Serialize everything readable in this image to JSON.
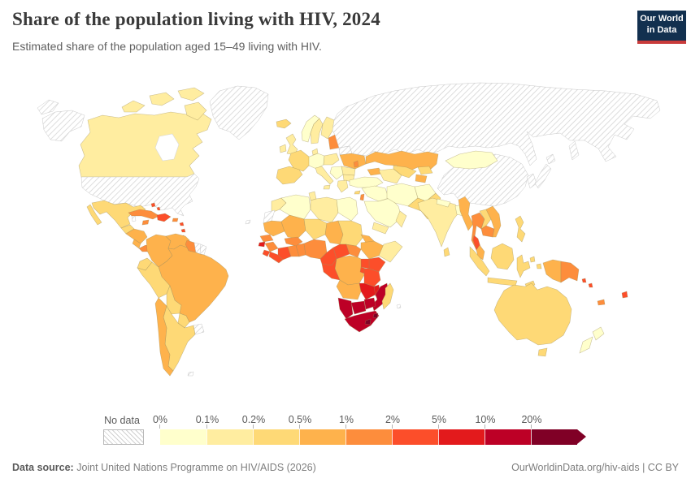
{
  "header": {
    "title": "Share of the population living with HIV, 2024",
    "subtitle": "Estimated share of the population aged 15–49 living with HIV.",
    "logo": {
      "line1": "Our World",
      "line2": "in Data",
      "bg_color": "#12304f",
      "accent_color": "#c93b3b"
    }
  },
  "legend": {
    "no_data_label": "No data",
    "bins": [
      {
        "label": "0%",
        "color": "#ffffcc"
      },
      {
        "label": "0.1%",
        "color": "#ffeda0"
      },
      {
        "label": "0.2%",
        "color": "#fed976"
      },
      {
        "label": "0.5%",
        "color": "#feb24c"
      },
      {
        "label": "1%",
        "color": "#fd8d3c"
      },
      {
        "label": "2%",
        "color": "#fc4e2a"
      },
      {
        "label": "5%",
        "color": "#e31a1c"
      },
      {
        "label": "10%",
        "color": "#bd0026"
      },
      {
        "label": "20%",
        "color": "#800026"
      }
    ]
  },
  "footer": {
    "source_label": "Data source:",
    "source_text": " Joint United Nations Programme on HIV/AIDS (2026)",
    "link_text": "OurWorldinData.org/hiv-aids | CC BY"
  },
  "map": {
    "palette": {
      "0-0.1": "#ffffcc",
      "0.1-0.2": "#ffeda0",
      "0.2-0.5": "#fed976",
      "0.5-1": "#feb24c",
      "1-2": "#fd8d3c",
      "2-5": "#fc4e2a",
      "5-10": "#e31a1c",
      "10-20": "#bd0026",
      "20+": "#800026"
    },
    "hatch_line_color": "#d2d2d2"
  },
  "chart_data": {
    "type": "choropleth-world-map",
    "title": "Share of the population living with HIV, 2024",
    "subtitle": "Estimated share of the population aged 15–49 living with HIV.",
    "unit": "% of population aged 15–49",
    "legend_position": "bottom",
    "bins": [
      {
        "label": "0%",
        "range": "0–0.1%",
        "color": "#ffffcc"
      },
      {
        "label": "0.1%",
        "range": "0.1–0.2%",
        "color": "#ffeda0"
      },
      {
        "label": "0.2%",
        "range": "0.2–0.5%",
        "color": "#fed976"
      },
      {
        "label": "0.5%",
        "range": "0.5–1%",
        "color": "#feb24c"
      },
      {
        "label": "1%",
        "range": "1–2%",
        "color": "#fd8d3c"
      },
      {
        "label": "2%",
        "range": "2–5%",
        "color": "#fc4e2a"
      },
      {
        "label": "5%",
        "range": "5–10%",
        "color": "#e31a1c"
      },
      {
        "label": "10%",
        "range": "10–20%",
        "color": "#bd0026"
      },
      {
        "label": "20%",
        "range": "≥20%",
        "color": "#800026"
      }
    ],
    "no_data": {
      "label": "No data",
      "style": "diagonal-hatch"
    },
    "countries": {
      "chukotka-west": "no-data",
      "alaska": "no-data",
      "usa": "no-data",
      "greenland": "no-data",
      "belize": "no-data",
      "bermuda": "no-data",
      "suriname": "no-data",
      "french-guiana": "no-data",
      "uruguay": "no-data",
      "falkland-islands": "no-data",
      "russia": "no-data",
      "sakhalin": "no-data",
      "belarus": "no-data",
      "china": "no-data",
      "japan-main": "no-data",
      "japan-north": "no-data",
      "korea": "no-data",
      "western-sahara": "no-data",
      "reunion": "no-data",
      "norway": "0-0.1",
      "germany-central-europe": "0-0.1",
      "serbia-balkans": "0-0.1",
      "turkey": "0-0.1",
      "syria-iraq": "0-0.1",
      "saudi-arabia": "0-0.1",
      "iran": "0-0.1",
      "afghanistan": "0-0.1",
      "nepal": "0-0.1",
      "bangladesh": "0-0.1",
      "mongolia": "0-0.1",
      "algeria": "0-0.1",
      "egypt": "0-0.1",
      "nz-north": "0-0.1",
      "nz-south": "0-0.1",
      "canada": "0.1-0.2",
      "canada-arctic-1": "0.1-0.2",
      "canada-arctic-2": "0.1-0.2",
      "canada-arctic-3": "0.1-0.2",
      "canada-arctic-4": "0.1-0.2",
      "uk": "0.1-0.2",
      "ireland": "0.1-0.2",
      "sweden": "0.1-0.2",
      "finland": "0.1-0.2",
      "denmark": "0.1-0.2",
      "poland": "0.1-0.2",
      "romania": "0.1-0.2",
      "bulgaria": "0.1-0.2",
      "greece": "0.1-0.2",
      "italy": "0.1-0.2",
      "sicily": "0.1-0.2",
      "morocco": "0.1-0.2",
      "tunisia": "0.1-0.2",
      "libya": "0.1-0.2",
      "somalia": "0.1-0.2",
      "yemen": "0.1-0.2",
      "oman": "0.1-0.2",
      "india": "0.1-0.2",
      "turkmenistan": "0.1-0.2",
      "mexico": "0.2-0.5",
      "baja": "0.2-0.5",
      "guatemala": "0.2-0.5",
      "ecuador": "0.2-0.5",
      "peru": "0.2-0.5",
      "bolivia": "0.2-0.5",
      "paraguay": "0.2-0.5",
      "argentina": "0.2-0.5",
      "iceland": "0.2-0.5",
      "france": "0.2-0.5",
      "iberia": "0.2-0.5",
      "cyprus": "0.2-0.5",
      "niger": "0.2-0.5",
      "sudan": "0.2-0.5",
      "madagascar": "0.2-0.5",
      "pakistan": "0.2-0.5",
      "uzbekistan": "0.2-0.5",
      "kyrgyzstan": "0.2-0.5",
      "sri-lanka": "0.2-0.5",
      "laos": "0.2-0.5",
      "sumatra": "0.2-0.5",
      "java": "0.2-0.5",
      "borneo": "0.2-0.5",
      "sulawesi": "0.2-0.5",
      "moluccas-1": "0.2-0.5",
      "moluccas-2": "0.2-0.5",
      "timor": "0.2-0.5",
      "philippines": "0.2-0.5",
      "australia": "0.2-0.5",
      "tasmania": "0.2-0.5",
      "honduras-nicaragua": "0.5-1",
      "costa-rica": "0.5-1",
      "colombia": "0.5-1",
      "venezuela": "0.5-1",
      "brazil": "0.5-1",
      "chile": "0.5-1",
      "mauritania": "0.5-1",
      "mali": "0.5-1",
      "chad": "0.5-1",
      "eritrea": "0.5-1",
      "ethiopia": "0.5-1",
      "drc": "0.5-1",
      "angola": "0.5-1",
      "kazakhstan": "0.5-1",
      "tajikistan": "0.5-1",
      "caucasus": "0.5-1",
      "ukraine": "0.5-1",
      "myanmar": "0.5-1",
      "vietnam": "0.5-1",
      "malaysia-peninsula": "0.5-1",
      "west-papua": "0.5-1",
      "cuba": "1-2",
      "jamaica": "1-2",
      "puerto-rico": "1-2",
      "panama": "1-2",
      "guyana": "1-2",
      "baltics": "1-2",
      "moldova": "1-2",
      "israel": "1-2",
      "senegal": "1-2",
      "guinea": "1-2",
      "ghana": "1-2",
      "togo-benin": "1-2",
      "burkina-faso": "1-2",
      "nigeria": "1-2",
      "south-sudan": "1-2",
      "thailand": "1-2",
      "cambodia": "1-2",
      "png": "1-2",
      "new-caledonia": "1-2",
      "hispaniola": "2-5",
      "bahamas-1": "2-5",
      "bahamas-2": "2-5",
      "antilles-1": "2-5",
      "antilles-2": "2-5",
      "antilles-3": "2-5",
      "trinidad": "2-5",
      "sierra-leone": "2-5",
      "liberia": "2-5",
      "cote-divoire": "2-5",
      "cameroon": "2-5",
      "car": "2-5",
      "gabon-congo": "2-5",
      "uganda": "2-5",
      "kenya": "2-5",
      "rwanda-burundi": "2-5",
      "tanzania": "2-5",
      "thailand-south": "2-5",
      "fiji": "2-5",
      "solomon-1": "2-5",
      "solomon-2": "2-5",
      "guinea-bissau": "5-10",
      "zambia": "5-10",
      "malawi": "5-10",
      "mozambique": "10-20",
      "zimbabwe": "10-20",
      "botswana": "10-20",
      "namibia": "10-20",
      "south-africa": "10-20",
      "lesotho": "20+",
      "eswatini": "20+"
    }
  }
}
